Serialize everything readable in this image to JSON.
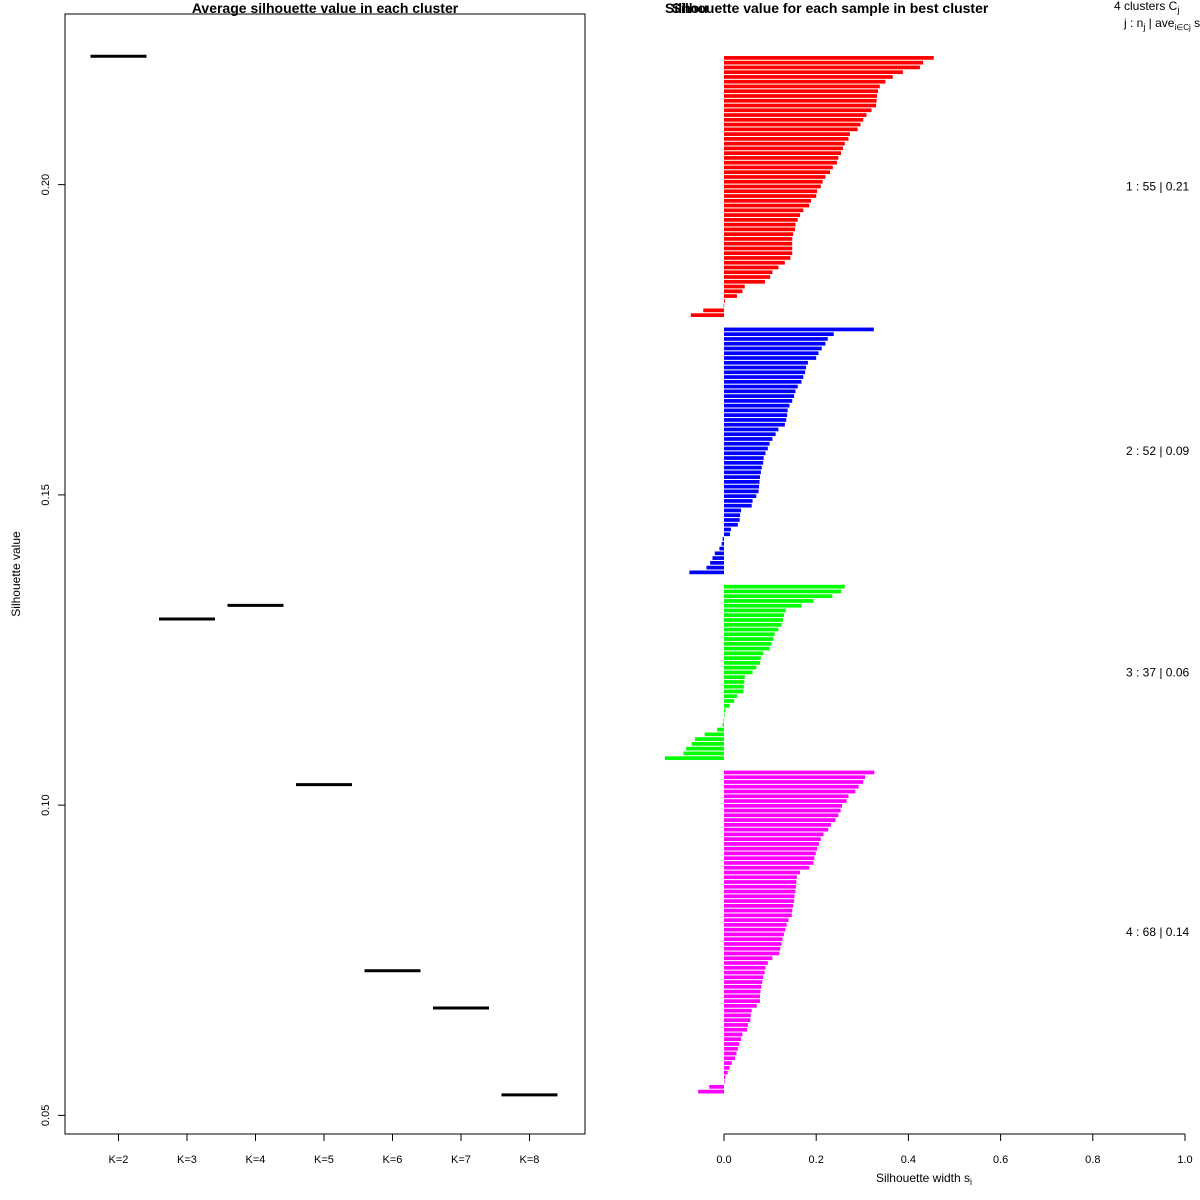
{
  "chart_data": [
    {
      "type": "line",
      "title": "Average silhouette value in each cluster",
      "xlabel": "",
      "ylabel": "Silhouette value",
      "categories": [
        "K=2",
        "K=3",
        "K=4",
        "K=5",
        "K=6",
        "K=7",
        "K=8"
      ],
      "values": [
        0.2207,
        0.13,
        0.1322,
        0.1033,
        0.0733,
        0.0673,
        0.0533
      ],
      "yticks": [
        "0.05",
        "0.10",
        "0.15",
        "0.20"
      ],
      "ylim": [
        0.047,
        0.2275
      ],
      "grid": false
    },
    {
      "type": "bar",
      "orientation": "horizontal",
      "title_overlap": "Silhouette value for each sample in best cluster",
      "title_under": "Silhouette plot of ...",
      "title_under_visible": "Silhou",
      "xlabel": "Silhouette width s",
      "xlabel_sub": "i",
      "xticks": [
        "0.0",
        "0.2",
        "0.4",
        "0.6",
        "0.8",
        "1.0"
      ],
      "xlim": [
        0,
        1
      ],
      "legend_header": "4  clusters  C",
      "legend_header_sub": "j",
      "legend_subheader": "j :  n",
      "legend_subheader_sub": "j",
      "legend_subheader_rest": " | ave",
      "legend_subheader_sub2": "i∈Cj",
      "legend_subheader_end": "  s",
      "clusters": [
        {
          "label": "1 :   55  |  0.21",
          "color": "#ff0000",
          "values": [
            0.455,
            0.432,
            0.425,
            0.388,
            0.366,
            0.35,
            0.338,
            0.334,
            0.332,
            0.331,
            0.33,
            0.32,
            0.309,
            0.302,
            0.296,
            0.29,
            0.273,
            0.27,
            0.262,
            0.258,
            0.254,
            0.248,
            0.245,
            0.236,
            0.23,
            0.22,
            0.214,
            0.21,
            0.202,
            0.2,
            0.189,
            0.185,
            0.172,
            0.165,
            0.16,
            0.155,
            0.154,
            0.15,
            0.148,
            0.148,
            0.148,
            0.148,
            0.144,
            0.132,
            0.118,
            0.105,
            0.1,
            0.089,
            0.045,
            0.04,
            0.028,
            0.002,
            -0.001,
            -0.045,
            -0.072
          ]
        },
        {
          "label": "2 :   52  |  0.09",
          "color": "#0000ff",
          "values": [
            0.325,
            0.238,
            0.225,
            0.22,
            0.212,
            0.205,
            0.2,
            0.182,
            0.178,
            0.176,
            0.172,
            0.168,
            0.16,
            0.155,
            0.152,
            0.148,
            0.142,
            0.138,
            0.137,
            0.135,
            0.132,
            0.118,
            0.112,
            0.105,
            0.099,
            0.095,
            0.09,
            0.086,
            0.085,
            0.082,
            0.08,
            0.078,
            0.077,
            0.076,
            0.075,
            0.07,
            0.062,
            0.06,
            0.037,
            0.035,
            0.034,
            0.03,
            0.015,
            0.013,
            -0.003,
            -0.005,
            -0.01,
            -0.02,
            -0.025,
            -0.03,
            -0.038,
            -0.075
          ]
        },
        {
          "label": "3 :   37  |  0.06",
          "color": "#00ff00",
          "values": [
            0.262,
            0.254,
            0.235,
            0.194,
            0.168,
            0.134,
            0.13,
            0.128,
            0.125,
            0.118,
            0.11,
            0.107,
            0.103,
            0.099,
            0.085,
            0.08,
            0.078,
            0.07,
            0.062,
            0.045,
            0.044,
            0.043,
            0.042,
            0.028,
            0.022,
            0.012,
            0.003,
            0.0,
            -0.001,
            -0.003,
            -0.015,
            -0.042,
            -0.063,
            -0.07,
            -0.082,
            -0.088,
            -0.128
          ]
        },
        {
          "label": "4 :   68  |  0.14",
          "color": "#ff00ff",
          "values": [
            0.326,
            0.306,
            0.302,
            0.292,
            0.285,
            0.27,
            0.266,
            0.256,
            0.253,
            0.248,
            0.242,
            0.232,
            0.226,
            0.216,
            0.21,
            0.206,
            0.202,
            0.199,
            0.196,
            0.194,
            0.185,
            0.165,
            0.158,
            0.157,
            0.156,
            0.155,
            0.153,
            0.152,
            0.15,
            0.148,
            0.147,
            0.14,
            0.136,
            0.133,
            0.13,
            0.127,
            0.125,
            0.122,
            0.12,
            0.105,
            0.095,
            0.09,
            0.088,
            0.085,
            0.083,
            0.081,
            0.079,
            0.078,
            0.078,
            0.071,
            0.06,
            0.058,
            0.057,
            0.052,
            0.05,
            0.04,
            0.037,
            0.033,
            0.03,
            0.027,
            0.024,
            0.017,
            0.012,
            0.008,
            0.003,
            0.001,
            -0.032,
            -0.056
          ]
        }
      ]
    }
  ]
}
